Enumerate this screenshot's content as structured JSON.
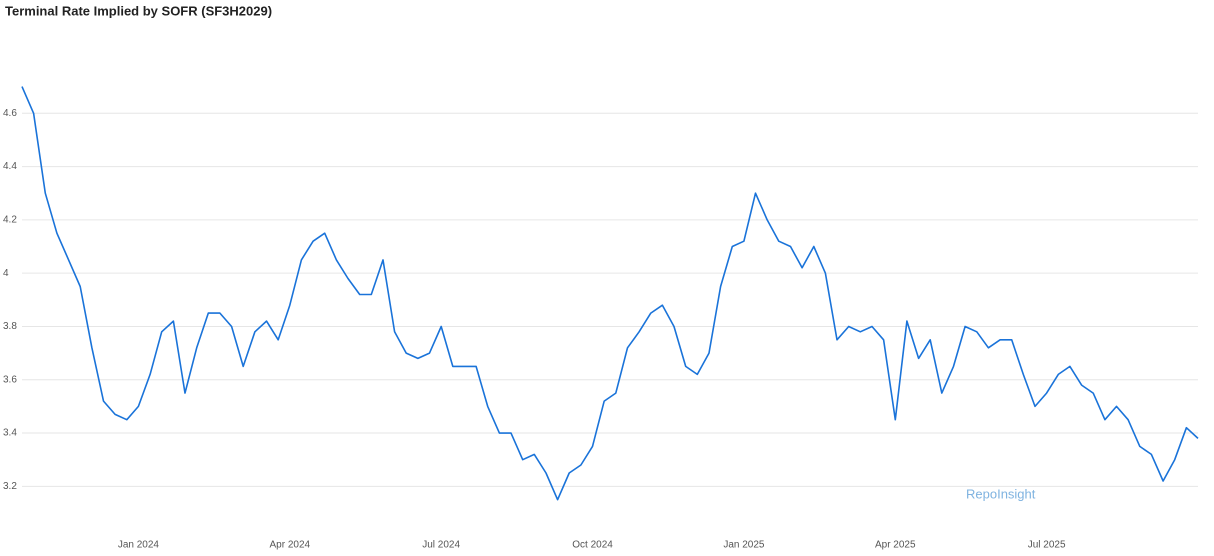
{
  "chart_data": {
    "type": "line",
    "title": "Terminal Rate Implied by SOFR (SF3H2029)",
    "annotation": "RepoInsight",
    "categories": [
      null,
      null,
      null,
      null,
      null,
      null,
      null,
      null,
      null,
      null,
      "Jan 2024",
      null,
      null,
      null,
      null,
      null,
      null,
      null,
      null,
      null,
      null,
      null,
      null,
      "Apr 2024",
      null,
      null,
      null,
      null,
      null,
      null,
      null,
      null,
      null,
      null,
      null,
      null,
      "Jul 2024",
      null,
      null,
      null,
      null,
      null,
      null,
      null,
      null,
      null,
      null,
      null,
      null,
      "Oct 2024",
      null,
      null,
      null,
      null,
      null,
      null,
      null,
      null,
      null,
      null,
      null,
      null,
      "Jan 2025",
      null,
      null,
      null,
      null,
      null,
      null,
      null,
      null,
      null,
      null,
      null,
      null,
      "Apr 2025",
      null,
      null,
      null,
      null,
      null,
      null,
      null,
      null,
      null,
      null,
      null,
      null,
      "Jul 2025",
      null,
      null,
      null,
      null,
      null,
      null,
      null,
      null,
      null,
      null,
      null,
      null,
      null
    ],
    "series": [
      {
        "name": "SF3H2029",
        "color": "#1a73d9",
        "values": [
          4.7,
          4.6,
          4.3,
          4.15,
          4.05,
          3.95,
          3.72,
          3.52,
          3.47,
          3.45,
          3.5,
          3.62,
          3.78,
          3.82,
          3.55,
          3.72,
          3.85,
          3.85,
          3.8,
          3.65,
          3.78,
          3.82,
          3.75,
          3.88,
          4.05,
          4.12,
          4.15,
          4.05,
          3.98,
          3.92,
          3.92,
          4.05,
          3.78,
          3.7,
          3.68,
          3.7,
          3.8,
          3.65,
          3.65,
          3.65,
          3.5,
          3.4,
          3.4,
          3.3,
          3.32,
          3.25,
          3.15,
          3.25,
          3.28,
          3.35,
          3.52,
          3.55,
          3.72,
          3.78,
          3.85,
          3.88,
          3.8,
          3.65,
          3.62,
          3.7,
          3.95,
          4.1,
          4.12,
          4.3,
          4.2,
          4.12,
          4.1,
          4.02,
          4.1,
          4.0,
          3.75,
          3.8,
          3.78,
          3.8,
          3.75,
          3.45,
          3.82,
          3.68,
          3.75,
          3.55,
          3.65,
          3.8,
          3.78,
          3.72,
          3.75,
          3.75,
          3.62,
          3.5,
          3.55,
          3.62,
          3.65,
          3.58,
          3.55,
          3.45,
          3.5,
          3.45,
          3.35,
          3.32,
          3.22,
          3.3,
          3.42,
          3.38
        ]
      }
    ],
    "ylim": [
      3.1,
      4.8
    ],
    "yticks": [
      3.2,
      3.4,
      3.6,
      3.8,
      4,
      4.2,
      4.4,
      4.6
    ],
    "grid": true
  }
}
